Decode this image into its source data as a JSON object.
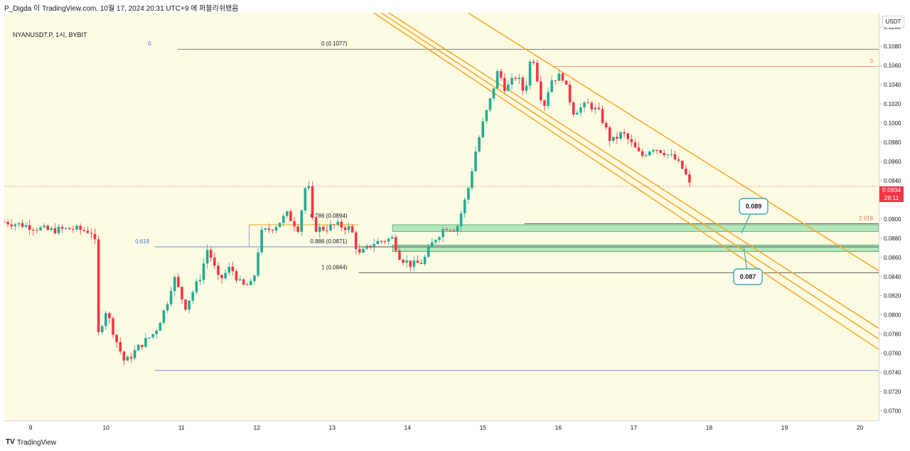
{
  "header": {
    "publish_line": "P_Digda 이 TradingView.com, 10월 17, 2024 20:31 UTC+9 에 퍼블리쉬됐음"
  },
  "symbol": {
    "label": "NYANUSDT.P, 1시, BYBIT"
  },
  "price_axis": {
    "unit": "USDT",
    "last_price": "0.0934",
    "countdown": "28:11"
  },
  "footer": {
    "brand": "TradingView",
    "logo": "TV"
  },
  "annotations": {
    "fib_left_0": "0",
    "fib_left_0618": "0.618",
    "fib_0": "0 (0.1077)",
    "fib_0786": "0.786 (0.0894)",
    "fib_0886": "0.886 (0.0871)",
    "fib_1": "1 (0.0844)",
    "fib_right_0": "0",
    "fib_right_2618": "2.618",
    "callout_089": "0.089",
    "callout_087": "0.087"
  },
  "colors": {
    "background": "#fefbe3",
    "up": "#22ab94",
    "down": "#f23645",
    "channel": "#f5a623",
    "fib_line": "#4a6fd1",
    "zone": "#7fdc9f",
    "callout": "#3aa7b8"
  },
  "chart_data": {
    "type": "candlestick",
    "title": "",
    "symbol": "NYANUSDT.P",
    "interval": "1시",
    "exchange": "BYBIT",
    "y_unit": "USDT",
    "ylim": [
      0.069,
      0.1115
    ],
    "y_ticks": [
      "0.1100",
      "0.1080",
      "0.1060",
      "0.1040",
      "0.1020",
      "0.1000",
      "0.0980",
      "0.0960",
      "0.0940",
      "0.0920",
      "0.0900",
      "0.0880",
      "0.0860",
      "0.0840",
      "0.0820",
      "0.0800",
      "0.0780",
      "0.0760",
      "0.0740",
      "0.0720",
      "0.0700"
    ],
    "x_ticks": [
      {
        "label": "9",
        "day": 9
      },
      {
        "label": "10",
        "day": 10
      },
      {
        "label": "11",
        "day": 11
      },
      {
        "label": "12",
        "day": 12
      },
      {
        "label": "13",
        "day": 13
      },
      {
        "label": "14",
        "day": 14
      },
      {
        "label": "15",
        "day": 15
      },
      {
        "label": "16",
        "day": 16
      },
      {
        "label": "17",
        "day": 17
      },
      {
        "label": "18",
        "day": 18
      },
      {
        "label": "19",
        "day": 19
      },
      {
        "label": "20",
        "day": 20
      }
    ],
    "price_path": [
      [
        8.7,
        0.0897
      ],
      [
        9.0,
        0.0893
      ],
      [
        9.3,
        0.0888
      ],
      [
        9.6,
        0.089
      ],
      [
        9.85,
        0.0887
      ],
      [
        9.9,
        0.088
      ],
      [
        9.95,
        0.078
      ],
      [
        10.05,
        0.0805
      ],
      [
        10.2,
        0.077
      ],
      [
        10.3,
        0.075
      ],
      [
        10.5,
        0.0768
      ],
      [
        10.7,
        0.0782
      ],
      [
        10.85,
        0.081
      ],
      [
        10.95,
        0.084
      ],
      [
        11.1,
        0.0808
      ],
      [
        11.3,
        0.084
      ],
      [
        11.4,
        0.087
      ],
      [
        11.55,
        0.0835
      ],
      [
        11.7,
        0.085
      ],
      [
        11.85,
        0.083
      ],
      [
        12.0,
        0.0832
      ],
      [
        12.1,
        0.0885
      ],
      [
        12.3,
        0.0893
      ],
      [
        12.45,
        0.0905
      ],
      [
        12.6,
        0.089
      ],
      [
        12.72,
        0.0945
      ],
      [
        12.8,
        0.089
      ],
      [
        12.95,
        0.089
      ],
      [
        13.1,
        0.0894
      ],
      [
        13.3,
        0.089
      ],
      [
        13.4,
        0.0862
      ],
      [
        13.6,
        0.0875
      ],
      [
        13.85,
        0.088
      ],
      [
        13.95,
        0.086
      ],
      [
        14.1,
        0.0852
      ],
      [
        14.25,
        0.0855
      ],
      [
        14.4,
        0.0878
      ],
      [
        14.55,
        0.0892
      ],
      [
        14.7,
        0.089
      ],
      [
        14.85,
        0.093
      ],
      [
        14.95,
        0.097
      ],
      [
        15.05,
        0.1
      ],
      [
        15.15,
        0.1025
      ],
      [
        15.25,
        0.1055
      ],
      [
        15.35,
        0.1035
      ],
      [
        15.5,
        0.105
      ],
      [
        15.6,
        0.103
      ],
      [
        15.7,
        0.1075
      ],
      [
        15.85,
        0.1015
      ],
      [
        15.95,
        0.1045
      ],
      [
        16.1,
        0.105
      ],
      [
        16.25,
        0.1012
      ],
      [
        16.45,
        0.102
      ],
      [
        16.6,
        0.101
      ],
      [
        16.75,
        0.098
      ],
      [
        16.9,
        0.099
      ],
      [
        17.05,
        0.0975
      ],
      [
        17.15,
        0.0965
      ],
      [
        17.3,
        0.0975
      ],
      [
        17.45,
        0.097
      ],
      [
        17.6,
        0.0962
      ],
      [
        17.72,
        0.095
      ],
      [
        17.8,
        0.0934
      ]
    ],
    "series": [
      {
        "kind": "fibonacci",
        "levels": [
          {
            "ratio": 0,
            "price": 0.1077
          },
          {
            "ratio": 0.618,
            "price": 0.0871
          },
          {
            "ratio": 0.786,
            "price": 0.0894
          },
          {
            "ratio": 0.886,
            "price": 0.0871
          },
          {
            "ratio": 1,
            "price": 0.0844
          }
        ]
      },
      {
        "kind": "fibonacci-extension",
        "levels": [
          {
            "ratio": 0,
            "price": 0.1059
          },
          {
            "ratio": 2.618,
            "price": 0.0895
          }
        ]
      },
      {
        "kind": "support-zones",
        "zones": [
          [
            0.0887,
            0.0894
          ],
          [
            0.0866,
            0.0873
          ]
        ]
      },
      {
        "kind": "descending-channel",
        "lines": [
          {
            "from": [
              13.6,
              0.1115
            ],
            "to": [
              20.3,
              0.0764
            ]
          },
          {
            "from": [
              13.7,
              0.1115
            ],
            "to": [
              20.3,
              0.0775
            ]
          },
          {
            "from": [
              13.8,
              0.1115
            ],
            "to": [
              20.3,
              0.0786
            ]
          },
          {
            "from": [
              14.85,
              0.1115
            ],
            "to": [
              20.3,
              0.0846
            ]
          }
        ]
      }
    ],
    "last_price": 0.0934
  }
}
